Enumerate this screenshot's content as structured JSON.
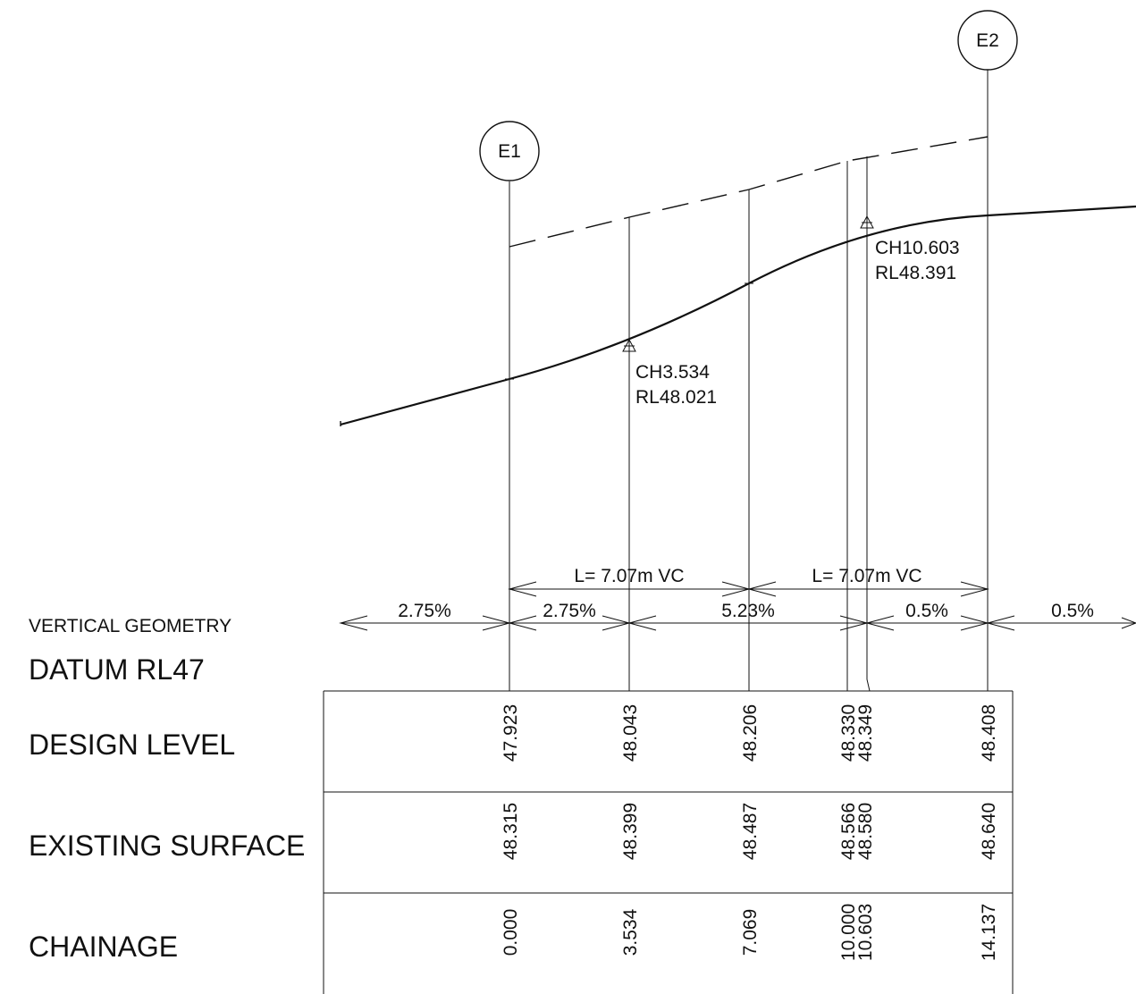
{
  "markers": {
    "start": "E1",
    "end": "E2"
  },
  "annotations": {
    "ip1": {
      "chainage": "CH3.534",
      "level": "RL48.021"
    },
    "ip2": {
      "chainage": "CH10.603",
      "level": "RL48.391"
    }
  },
  "vertical_curves": [
    {
      "label": "L= 7.07m VC"
    },
    {
      "label": "L= 7.07m VC"
    }
  ],
  "grades": [
    "2.75%",
    "2.75%",
    "5.23%",
    "0.5%",
    "0.5%"
  ],
  "labels": {
    "vertical_geometry": "VERTICAL GEOMETRY",
    "datum": "DATUM RL47",
    "design_level": "DESIGN LEVEL",
    "existing_surface": "EXISTING SURFACE",
    "chainage": "CHAINAGE"
  },
  "stations": [
    {
      "chainage": "0.000",
      "design": "47.923",
      "existing": "48.315"
    },
    {
      "chainage": "3.534",
      "design": "48.043",
      "existing": "48.399"
    },
    {
      "chainage": "7.069",
      "design": "48.206",
      "existing": "48.487"
    },
    {
      "chainage": "10.000",
      "design": "48.330",
      "existing": "48.566"
    },
    {
      "chainage": "10.603",
      "design": "48.349",
      "existing": "48.580"
    },
    {
      "chainage": "14.137",
      "design": "48.408",
      "existing": "48.640"
    }
  ]
}
